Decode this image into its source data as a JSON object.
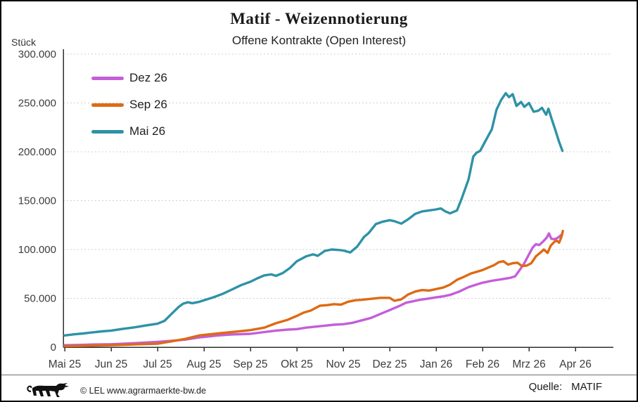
{
  "title": "Matif - Weizennotierung",
  "subtitle": "Offene Kontrakte (Open Interest)",
  "y_axis_unit": "Stück",
  "legend": [
    {
      "label": "Dez 26",
      "color": "#c45ed8"
    },
    {
      "label": "Sep 26",
      "color": "#dd6a14"
    },
    {
      "label": "Mai 26",
      "color": "#2e92a6"
    }
  ],
  "footer": {
    "logo_icon": "bw-lion-icon",
    "copyright": "© LEL www.agrarmaerkte-bw.de",
    "source_label": "Quelle:",
    "source_value": "MATIF"
  },
  "chart_data": {
    "type": "line",
    "title": "Matif - Weizennotierung",
    "subtitle": "Offene Kontrakte (Open Interest)",
    "ylabel": "Stück",
    "ylim": [
      0,
      300000
    ],
    "ytick_step": 50000,
    "ytick_labels": [
      "0",
      "50.000",
      "100.000",
      "150.000",
      "200.000",
      "250.000",
      "300.000"
    ],
    "x_categories": [
      "Mai 25",
      "Jun 25",
      "Jul 25",
      "Aug 25",
      "Sep 25",
      "Okt 25",
      "Nov 25",
      "Dez 25",
      "Jan 26",
      "Feb 26",
      "Mrz 26",
      "Apr 26"
    ],
    "grid": "horizontal-dashed",
    "legend_position": "top-left-inside",
    "x_unit": "month-index (0 = Mai 25, 11 = Apr 26)",
    "series": [
      {
        "name": "Dez 26",
        "color": "#c45ed8",
        "points": [
          [
            0,
            2000
          ],
          [
            0.3,
            2300
          ],
          [
            0.6,
            2700
          ],
          [
            1,
            3000
          ],
          [
            1.3,
            3600
          ],
          [
            1.6,
            4300
          ],
          [
            2,
            5500
          ],
          [
            2.3,
            6500
          ],
          [
            2.6,
            7800
          ],
          [
            2.9,
            10000
          ],
          [
            3,
            10500
          ],
          [
            3.3,
            12000
          ],
          [
            3.6,
            13000
          ],
          [
            4,
            13700
          ],
          [
            4.3,
            15500
          ],
          [
            4.55,
            17000
          ],
          [
            4.8,
            18000
          ],
          [
            5,
            18500
          ],
          [
            5.2,
            20000
          ],
          [
            5.4,
            21000
          ],
          [
            5.6,
            22000
          ],
          [
            5.8,
            23000
          ],
          [
            6,
            23500
          ],
          [
            6.2,
            25000
          ],
          [
            6.4,
            27500
          ],
          [
            6.6,
            30000
          ],
          [
            6.8,
            34000
          ],
          [
            7,
            38000
          ],
          [
            7.2,
            42000
          ],
          [
            7.35,
            45500
          ],
          [
            7.5,
            47000
          ],
          [
            7.65,
            48500
          ],
          [
            7.8,
            49500
          ],
          [
            8,
            51000
          ],
          [
            8.15,
            52000
          ],
          [
            8.3,
            53500
          ],
          [
            8.5,
            57000
          ],
          [
            8.7,
            61500
          ],
          [
            8.9,
            64500
          ],
          [
            9,
            66000
          ],
          [
            9.2,
            68000
          ],
          [
            9.4,
            69500
          ],
          [
            9.6,
            71000
          ],
          [
            9.7,
            72500
          ],
          [
            9.8,
            79000
          ],
          [
            9.9,
            86000
          ],
          [
            10,
            95000
          ],
          [
            10.08,
            102000
          ],
          [
            10.15,
            105500
          ],
          [
            10.22,
            104500
          ],
          [
            10.3,
            108000
          ],
          [
            10.38,
            112000
          ],
          [
            10.43,
            116500
          ],
          [
            10.48,
            111000
          ],
          [
            10.55,
            110500
          ],
          [
            10.62,
            112000
          ],
          [
            10.7,
            115000
          ]
        ]
      },
      {
        "name": "Sep 26",
        "color": "#dd6a14",
        "points": [
          [
            0,
            1000
          ],
          [
            0.3,
            1200
          ],
          [
            0.6,
            1600
          ],
          [
            1,
            2000
          ],
          [
            1.3,
            2500
          ],
          [
            1.6,
            3000
          ],
          [
            2,
            3500
          ],
          [
            2.3,
            6000
          ],
          [
            2.6,
            8500
          ],
          [
            2.9,
            12000
          ],
          [
            3,
            12500
          ],
          [
            3.3,
            14000
          ],
          [
            3.6,
            15500
          ],
          [
            3.9,
            17000
          ],
          [
            4,
            17500
          ],
          [
            4.3,
            20000
          ],
          [
            4.55,
            24500
          ],
          [
            4.8,
            28000
          ],
          [
            5,
            32000
          ],
          [
            5.15,
            35500
          ],
          [
            5.3,
            37500
          ],
          [
            5.5,
            42500
          ],
          [
            5.65,
            43000
          ],
          [
            5.8,
            44000
          ],
          [
            5.95,
            43500
          ],
          [
            6.1,
            46500
          ],
          [
            6.25,
            48000
          ],
          [
            6.4,
            48500
          ],
          [
            6.6,
            49500
          ],
          [
            6.8,
            50500
          ],
          [
            7,
            50500
          ],
          [
            7.1,
            47500
          ],
          [
            7.25,
            49000
          ],
          [
            7.4,
            54000
          ],
          [
            7.55,
            57000
          ],
          [
            7.7,
            58500
          ],
          [
            7.85,
            58000
          ],
          [
            8,
            59500
          ],
          [
            8.15,
            61000
          ],
          [
            8.3,
            64000
          ],
          [
            8.45,
            69000
          ],
          [
            8.6,
            72000
          ],
          [
            8.75,
            75500
          ],
          [
            8.9,
            77500
          ],
          [
            9,
            79000
          ],
          [
            9.1,
            81000
          ],
          [
            9.25,
            84000
          ],
          [
            9.35,
            87000
          ],
          [
            9.45,
            88000
          ],
          [
            9.55,
            84500
          ],
          [
            9.65,
            86000
          ],
          [
            9.75,
            86500
          ],
          [
            9.85,
            83000
          ],
          [
            9.95,
            83500
          ],
          [
            10.05,
            86000
          ],
          [
            10.15,
            93000
          ],
          [
            10.25,
            97000
          ],
          [
            10.32,
            100000
          ],
          [
            10.4,
            96500
          ],
          [
            10.47,
            104000
          ],
          [
            10.55,
            108000
          ],
          [
            10.6,
            109000
          ],
          [
            10.65,
            107000
          ],
          [
            10.7,
            113000
          ],
          [
            10.73,
            119000
          ]
        ]
      },
      {
        "name": "Mai 26",
        "color": "#2e92a6",
        "points": [
          [
            0,
            12000
          ],
          [
            0.2,
            13200
          ],
          [
            0.4,
            14000
          ],
          [
            0.6,
            15200
          ],
          [
            0.8,
            16200
          ],
          [
            1,
            17000
          ],
          [
            1.25,
            18800
          ],
          [
            1.5,
            20300
          ],
          [
            1.75,
            22200
          ],
          [
            2,
            24000
          ],
          [
            2.15,
            27000
          ],
          [
            2.3,
            34000
          ],
          [
            2.45,
            41000
          ],
          [
            2.55,
            44500
          ],
          [
            2.65,
            46000
          ],
          [
            2.75,
            45000
          ],
          [
            2.9,
            46500
          ],
          [
            3,
            48000
          ],
          [
            3.2,
            51000
          ],
          [
            3.4,
            54500
          ],
          [
            3.6,
            59000
          ],
          [
            3.8,
            63500
          ],
          [
            4,
            67000
          ],
          [
            4.15,
            70500
          ],
          [
            4.3,
            73500
          ],
          [
            4.45,
            74500
          ],
          [
            4.55,
            73000
          ],
          [
            4.7,
            76000
          ],
          [
            4.85,
            81000
          ],
          [
            5,
            88000
          ],
          [
            5.1,
            90500
          ],
          [
            5.2,
            93000
          ],
          [
            5.35,
            95000
          ],
          [
            5.45,
            93500
          ],
          [
            5.6,
            98500
          ],
          [
            5.75,
            100000
          ],
          [
            5.9,
            99500
          ],
          [
            6,
            99000
          ],
          [
            6.15,
            97000
          ],
          [
            6.3,
            103000
          ],
          [
            6.45,
            113000
          ],
          [
            6.55,
            117000
          ],
          [
            6.7,
            126000
          ],
          [
            6.85,
            128500
          ],
          [
            7,
            130000
          ],
          [
            7.1,
            129000
          ],
          [
            7.25,
            126500
          ],
          [
            7.4,
            131000
          ],
          [
            7.55,
            136500
          ],
          [
            7.7,
            139000
          ],
          [
            7.85,
            140000
          ],
          [
            8,
            141000
          ],
          [
            8.1,
            142000
          ],
          [
            8.2,
            139000
          ],
          [
            8.3,
            137000
          ],
          [
            8.45,
            140000
          ],
          [
            8.55,
            152000
          ],
          [
            8.7,
            172000
          ],
          [
            8.8,
            195000
          ],
          [
            8.87,
            199000
          ],
          [
            8.95,
            201000
          ],
          [
            9.05,
            210000
          ],
          [
            9.2,
            223000
          ],
          [
            9.3,
            243000
          ],
          [
            9.4,
            253000
          ],
          [
            9.5,
            260000
          ],
          [
            9.57,
            256000
          ],
          [
            9.65,
            259000
          ],
          [
            9.73,
            247000
          ],
          [
            9.83,
            251000
          ],
          [
            9.9,
            246000
          ],
          [
            10,
            250000
          ],
          [
            10.1,
            241000
          ],
          [
            10.2,
            242000
          ],
          [
            10.28,
            245000
          ],
          [
            10.37,
            238000
          ],
          [
            10.42,
            244000
          ],
          [
            10.5,
            232000
          ],
          [
            10.57,
            222000
          ],
          [
            10.65,
            210000
          ],
          [
            10.72,
            201000
          ]
        ]
      }
    ]
  }
}
